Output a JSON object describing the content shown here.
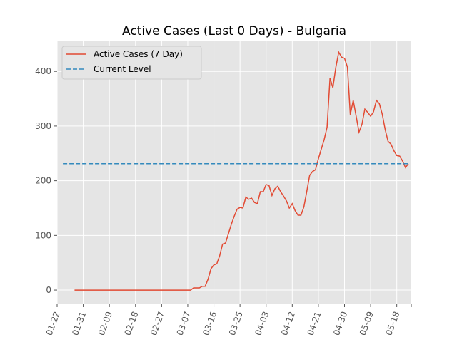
{
  "chart_data": {
    "type": "line",
    "title": "Active Cases (Last 0 Days) - Bulgaria",
    "xlabel": "",
    "ylabel": "",
    "xlim": [
      "2020-01-22",
      "2020-05-23"
    ],
    "ylim": [
      -26,
      455
    ],
    "grid": true,
    "legend_position": "top-left",
    "x_ticks": [
      "01-22",
      "01-31",
      "02-09",
      "02-18",
      "02-27",
      "03-07",
      "03-16",
      "03-25",
      "04-03",
      "04-12",
      "04-21",
      "04-30",
      "05-09",
      "05-18"
    ],
    "x_tick_dates": [
      "2020-01-22",
      "2020-01-31",
      "2020-02-09",
      "2020-02-18",
      "2020-02-27",
      "2020-03-07",
      "2020-03-16",
      "2020-03-25",
      "2020-04-03",
      "2020-04-12",
      "2020-04-21",
      "2020-04-30",
      "2020-05-09",
      "2020-05-18"
    ],
    "y_ticks": [
      0,
      100,
      200,
      300,
      400
    ],
    "colors": {
      "active": "#E24A33",
      "current": "#348ABD",
      "axes_bg": "#E5E5E5",
      "grid": "#FFFFFF",
      "tick_text": "#555555"
    },
    "series": [
      {
        "name": "Active Cases (7 Day)",
        "style": "solid",
        "points": [
          [
            "2020-01-28",
            0
          ],
          [
            "2020-02-05",
            0
          ],
          [
            "2020-02-15",
            0
          ],
          [
            "2020-02-25",
            0
          ],
          [
            "2020-03-03",
            0
          ],
          [
            "2020-03-08",
            0
          ],
          [
            "2020-03-09",
            4
          ],
          [
            "2020-03-11",
            4
          ],
          [
            "2020-03-12",
            7
          ],
          [
            "2020-03-13",
            7
          ],
          [
            "2020-03-14",
            20
          ],
          [
            "2020-03-15",
            39
          ],
          [
            "2020-03-16",
            46
          ],
          [
            "2020-03-17",
            48
          ],
          [
            "2020-03-18",
            63
          ],
          [
            "2020-03-19",
            84
          ],
          [
            "2020-03-20",
            86
          ],
          [
            "2020-03-21",
            103
          ],
          [
            "2020-03-22",
            120
          ],
          [
            "2020-03-23",
            135
          ],
          [
            "2020-03-24",
            148
          ],
          [
            "2020-03-25",
            151
          ],
          [
            "2020-03-26",
            150
          ],
          [
            "2020-03-27",
            170
          ],
          [
            "2020-03-28",
            166
          ],
          [
            "2020-03-29",
            168
          ],
          [
            "2020-03-30",
            160
          ],
          [
            "2020-03-31",
            158
          ],
          [
            "2020-04-01",
            180
          ],
          [
            "2020-04-02",
            180
          ],
          [
            "2020-04-03",
            193
          ],
          [
            "2020-04-04",
            191
          ],
          [
            "2020-04-05",
            173
          ],
          [
            "2020-04-06",
            185
          ],
          [
            "2020-04-07",
            190
          ],
          [
            "2020-04-08",
            180
          ],
          [
            "2020-04-09",
            172
          ],
          [
            "2020-04-10",
            163
          ],
          [
            "2020-04-11",
            150
          ],
          [
            "2020-04-12",
            158
          ],
          [
            "2020-04-13",
            145
          ],
          [
            "2020-04-14",
            137
          ],
          [
            "2020-04-15",
            137
          ],
          [
            "2020-04-16",
            152
          ],
          [
            "2020-04-17",
            180
          ],
          [
            "2020-04-18",
            210
          ],
          [
            "2020-04-19",
            217
          ],
          [
            "2020-04-20",
            220
          ],
          [
            "2020-04-21",
            240
          ],
          [
            "2020-04-22",
            258
          ],
          [
            "2020-04-23",
            275
          ],
          [
            "2020-04-24",
            298
          ],
          [
            "2020-04-25",
            388
          ],
          [
            "2020-04-26",
            370
          ],
          [
            "2020-04-27",
            407
          ],
          [
            "2020-04-28",
            435
          ],
          [
            "2020-04-29",
            426
          ],
          [
            "2020-04-30",
            424
          ],
          [
            "2020-05-01",
            408
          ],
          [
            "2020-05-02",
            321
          ],
          [
            "2020-05-03",
            347
          ],
          [
            "2020-05-04",
            318
          ],
          [
            "2020-05-05",
            289
          ],
          [
            "2020-05-06",
            303
          ],
          [
            "2020-05-07",
            331
          ],
          [
            "2020-05-08",
            325
          ],
          [
            "2020-05-09",
            318
          ],
          [
            "2020-05-10",
            326
          ],
          [
            "2020-05-11",
            347
          ],
          [
            "2020-05-12",
            341
          ],
          [
            "2020-05-13",
            322
          ],
          [
            "2020-05-14",
            294
          ],
          [
            "2020-05-15",
            272
          ],
          [
            "2020-05-16",
            267
          ],
          [
            "2020-05-17",
            255
          ],
          [
            "2020-05-18",
            246
          ],
          [
            "2020-05-19",
            245
          ],
          [
            "2020-05-20",
            236
          ],
          [
            "2020-05-21",
            224
          ],
          [
            "2020-05-22",
            231
          ]
        ]
      },
      {
        "name": "Current Level",
        "style": "dashed",
        "points": [
          [
            "2020-01-24",
            231
          ],
          [
            "2020-05-22",
            231
          ]
        ]
      }
    ]
  }
}
